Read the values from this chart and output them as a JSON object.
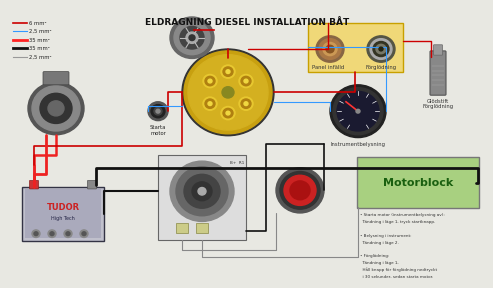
{
  "title": "ELDRAGNING DIESEL INSTALLATION BÅT",
  "title_fontsize": 6.5,
  "bg_color": "#e8e8e2",
  "legend_items": [
    {
      "label": "6 mm²",
      "color": "#cc0000",
      "lw": 1.2
    },
    {
      "label": "2,5 mm²",
      "color": "#3399ff",
      "lw": 0.8
    },
    {
      "label": "35 mm²",
      "color": "#ff2222",
      "lw": 2.0
    },
    {
      "label": "35 mm²",
      "color": "#111111",
      "lw": 2.0
    },
    {
      "label": "2,5 mm²",
      "color": "#999999",
      "lw": 0.8
    }
  ],
  "motorblock_text": "Motorblock",
  "motorblock_bg": "#a8d080",
  "motorblock_border": "#777777",
  "panel_infald_label": "Panel infälld",
  "forglodning_label2": "Förglödning",
  "instrumentbelysning_label": "Instrumentbelysning",
  "glodstift_label": "Glödstift\nFörglödning",
  "starta_motor_label": "Starta\nmotor",
  "panel_bg": "#f0d878",
  "panel_border": "#c8a000",
  "wire_red_thin": "#cc0000",
  "wire_blue": "#3399ff",
  "wire_red_thick": "#ee2222",
  "wire_black": "#111111",
  "wire_gray": "#888888",
  "instructions": [
    "• Starta motor (instrumentbelysning av):\n  Tändning i läge 1, tryck startknapp.",
    "• Belysning i instrument:\n  Tändning i läge 2.",
    "• Förglödning:\n  Tändning i läge 1,\n  Håll knapp för förglödning nedtryckt\n  i 30 sekunder, sedan starta motor."
  ]
}
